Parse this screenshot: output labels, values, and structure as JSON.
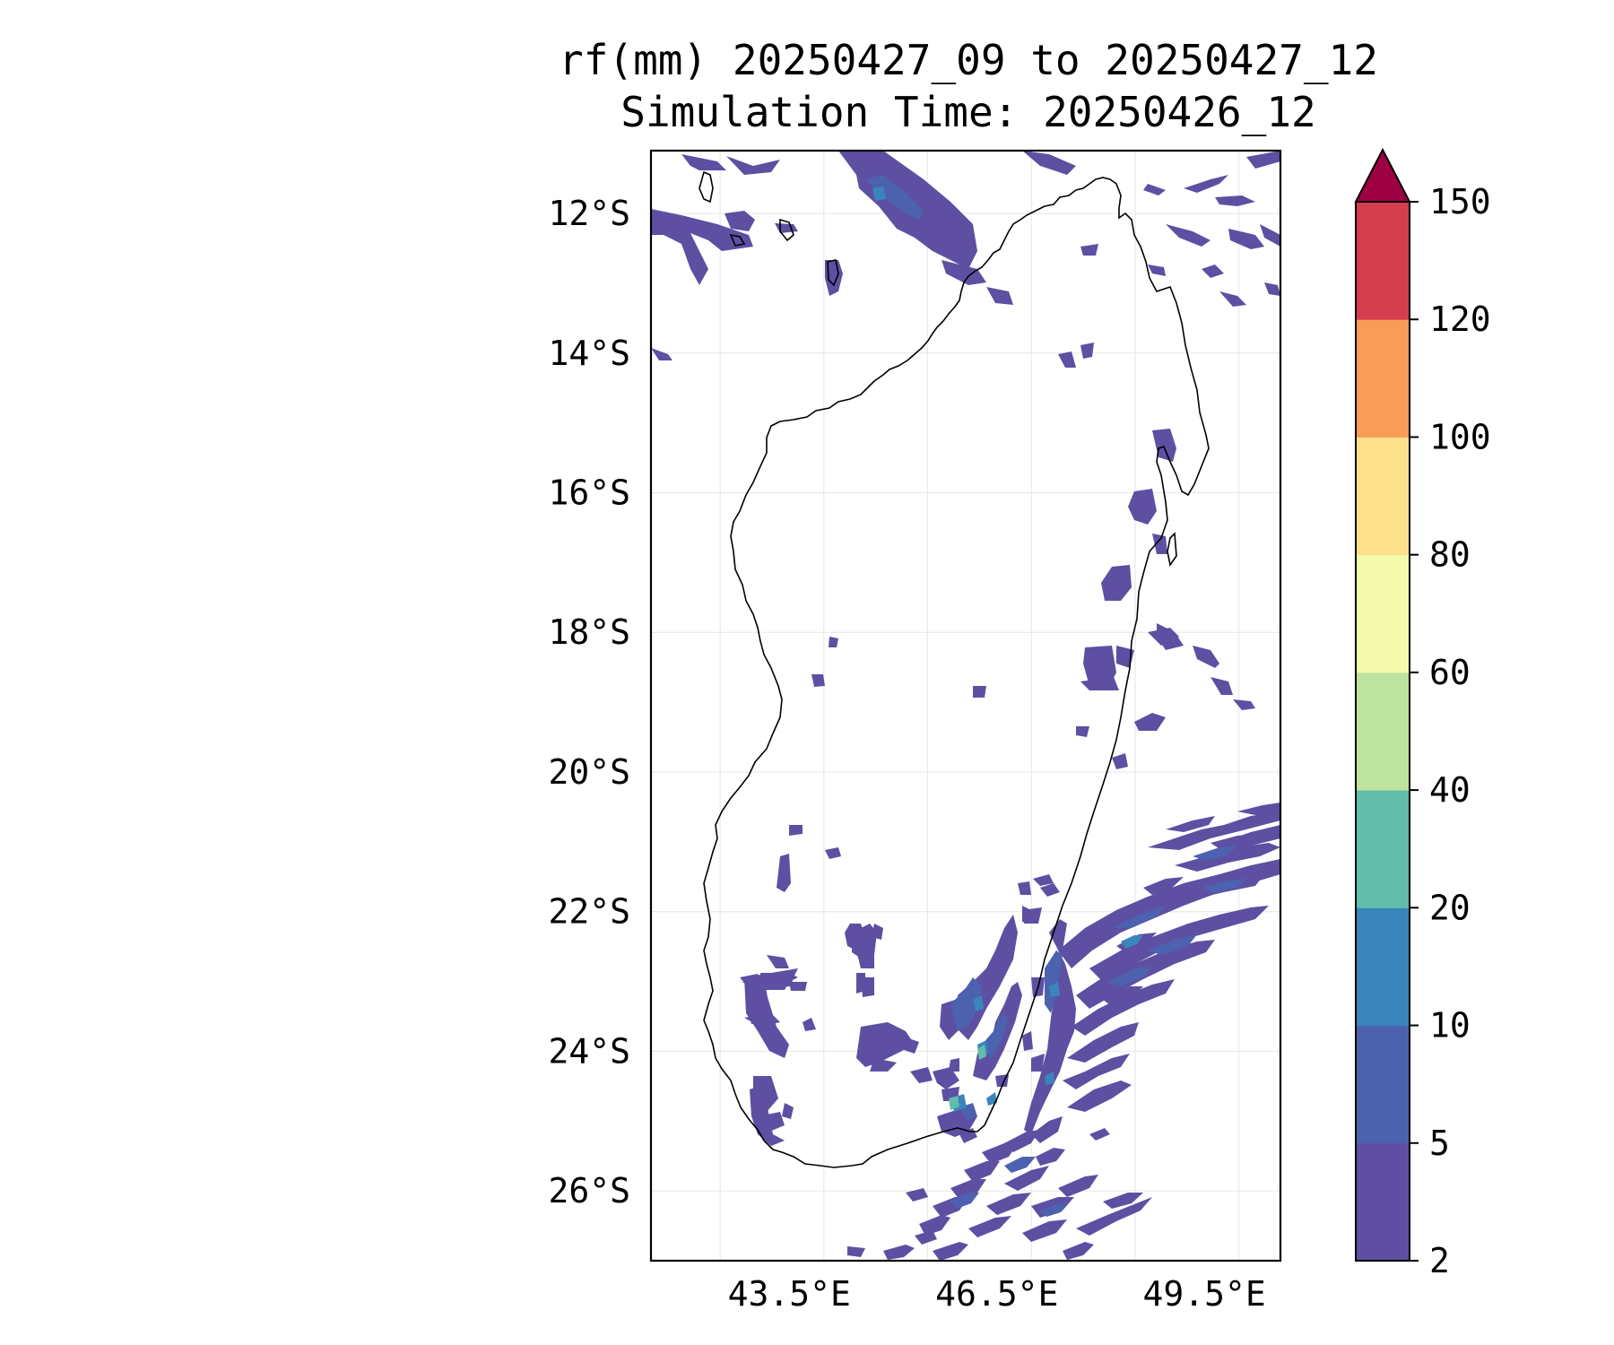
{
  "title": {
    "line1": "rf(mm) 20250427_09 to 20250427_12",
    "line2": "Simulation Time: 20250426_12"
  },
  "map": {
    "lon_range": [
      41.5,
      50.6
    ],
    "lat_range": [
      -27.0,
      -11.1
    ],
    "lat_ticks": [
      {
        "value": -12,
        "label": "12°S"
      },
      {
        "value": -14,
        "label": "14°S"
      },
      {
        "value": -16,
        "label": "16°S"
      },
      {
        "value": -18,
        "label": "18°S"
      },
      {
        "value": -20,
        "label": "20°S"
      },
      {
        "value": -22,
        "label": "22°S"
      },
      {
        "value": -24,
        "label": "24°S"
      },
      {
        "value": -26,
        "label": "26°S"
      }
    ],
    "lon_ticks": [
      {
        "value": 43.5,
        "label": "43.5°E"
      },
      {
        "value": 46.5,
        "label": "46.5°E"
      },
      {
        "value": 49.5,
        "label": "49.5°E"
      }
    ],
    "grid_lons": [
      42.5,
      44.0,
      45.5,
      47.0,
      48.5,
      50.0
    ],
    "grid": true,
    "land_outline_color": "#000000",
    "grid_color": "#e6e6e6"
  },
  "colorbar": {
    "levels": [
      "2",
      "5",
      "10",
      "20",
      "40",
      "60",
      "80",
      "100",
      "120",
      "150"
    ],
    "colors": [
      "#5e4fa2",
      "#4c62ae",
      "#3a85bc",
      "#62bda9",
      "#bee3a0",
      "#f3f9ad",
      "#fde08b",
      "#f99c58",
      "#d53e4f"
    ],
    "extend_color": "#9e0142",
    "extend": "max",
    "orientation": "vertical"
  },
  "rainfall_areas": [
    {
      "level": 0,
      "lon": 42.2,
      "lat": -12.0
    },
    {
      "level": 1,
      "lon": 46.3,
      "lat": -11.9
    },
    {
      "level": 0,
      "lon": 48.6,
      "lat": -18.2
    },
    {
      "level": 0,
      "lon": 49.4,
      "lat": -18.2
    },
    {
      "level": 1,
      "lon": 47.2,
      "lat": -23.6
    },
    {
      "level": 3,
      "lon": 47.3,
      "lat": -24.1
    },
    {
      "level": 3,
      "lon": 46.9,
      "lat": -24.6
    },
    {
      "level": 1,
      "lon": 48.7,
      "lat": -22.7
    },
    {
      "level": 1,
      "lon": 48.2,
      "lat": -24.4
    },
    {
      "level": 0,
      "lon": 44.2,
      "lat": -24.7
    }
  ]
}
